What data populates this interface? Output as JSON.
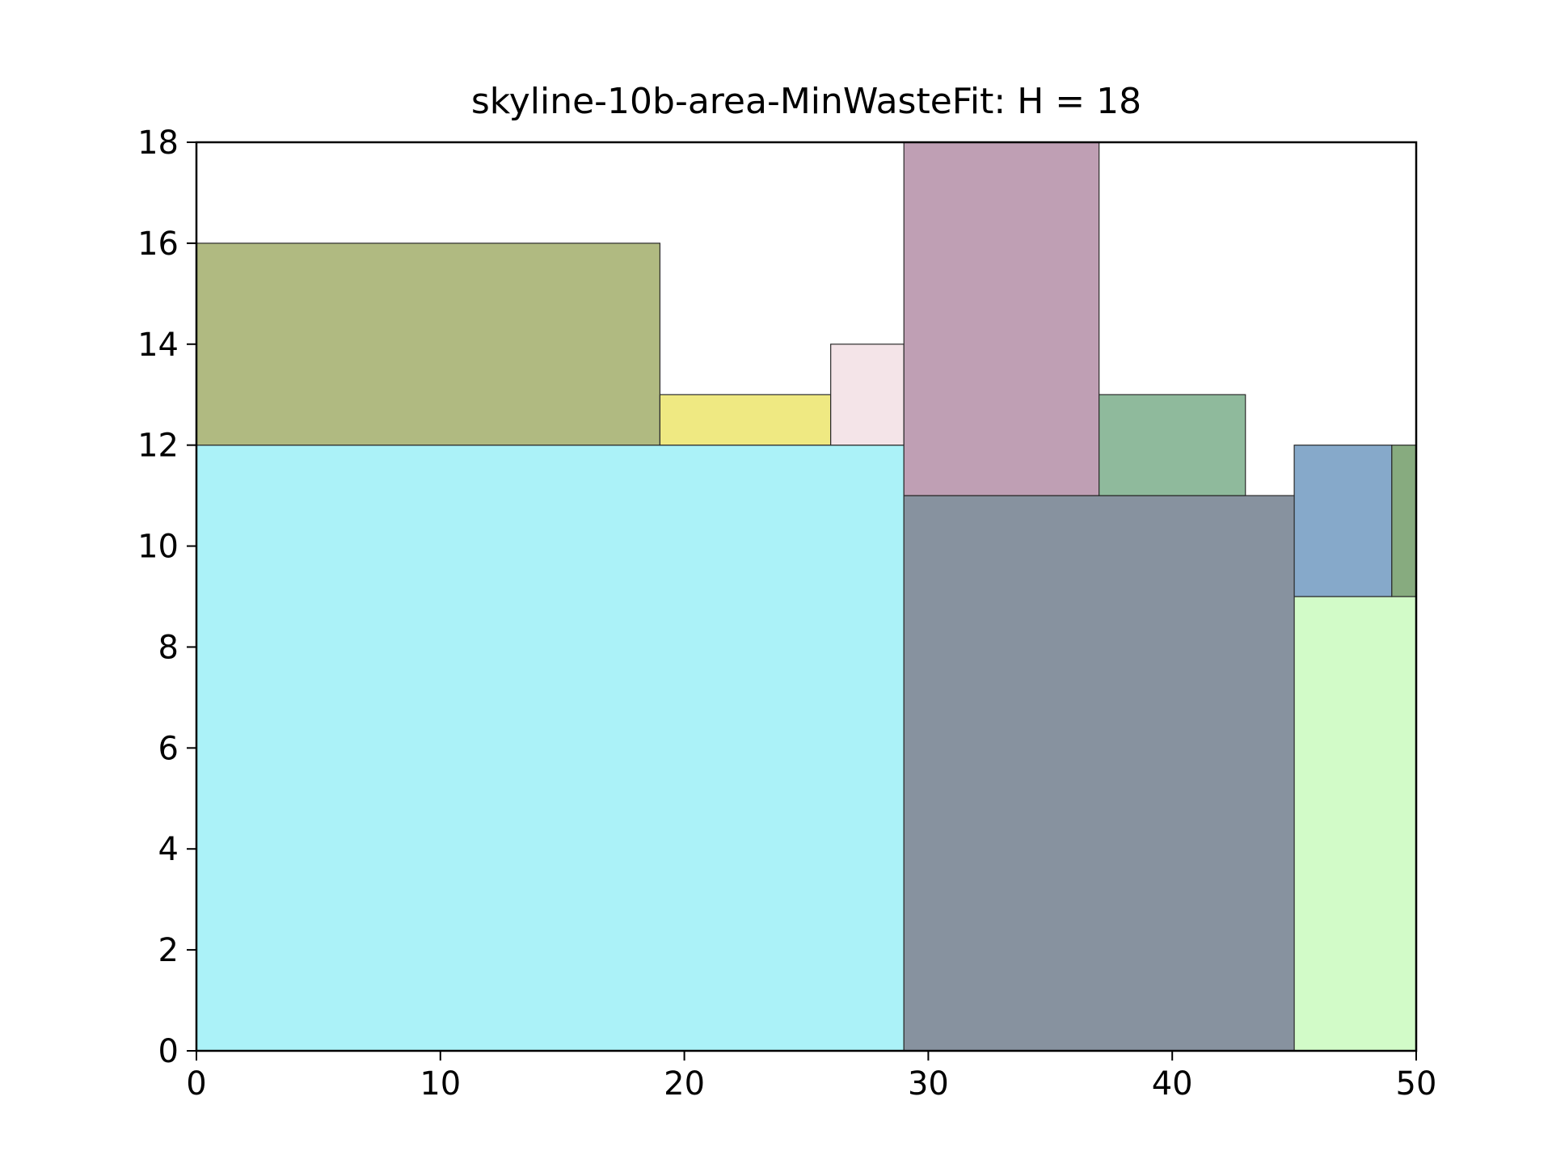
{
  "chart_data": {
    "type": "rectangle-packing",
    "title": "skyline-10b-area-MinWasteFit: H = 18",
    "xlim": [
      0,
      50
    ],
    "ylim": [
      0,
      18
    ],
    "xticks": [
      "0",
      "10",
      "20",
      "30",
      "40",
      "50"
    ],
    "yticks": [
      "0",
      "2",
      "4",
      "6",
      "8",
      "10",
      "12",
      "14",
      "16",
      "18"
    ],
    "grid": false,
    "rectangles": [
      {
        "x": 0,
        "y": 0,
        "w": 29,
        "h": 12,
        "color": "#abf2f8"
      },
      {
        "x": 29,
        "y": 0,
        "w": 16,
        "h": 11,
        "color": "#87929f"
      },
      {
        "x": 45,
        "y": 0,
        "w": 5,
        "h": 9,
        "color": "#d2fbc8"
      },
      {
        "x": 0,
        "y": 12,
        "w": 19,
        "h": 4,
        "color": "#b0ba81"
      },
      {
        "x": 19,
        "y": 12,
        "w": 7,
        "h": 1,
        "color": "#efe982"
      },
      {
        "x": 26,
        "y": 12,
        "w": 3,
        "h": 2,
        "color": "#f4e4e8"
      },
      {
        "x": 29,
        "y": 11,
        "w": 8,
        "h": 7,
        "color": "#bf9fb4"
      },
      {
        "x": 37,
        "y": 11,
        "w": 6,
        "h": 2,
        "color": "#8fba9c"
      },
      {
        "x": 45,
        "y": 9,
        "w": 4,
        "h": 3,
        "color": "#86a9ca"
      },
      {
        "x": 49,
        "y": 9,
        "w": 1,
        "h": 3,
        "color": "#87ab7f"
      }
    ]
  }
}
